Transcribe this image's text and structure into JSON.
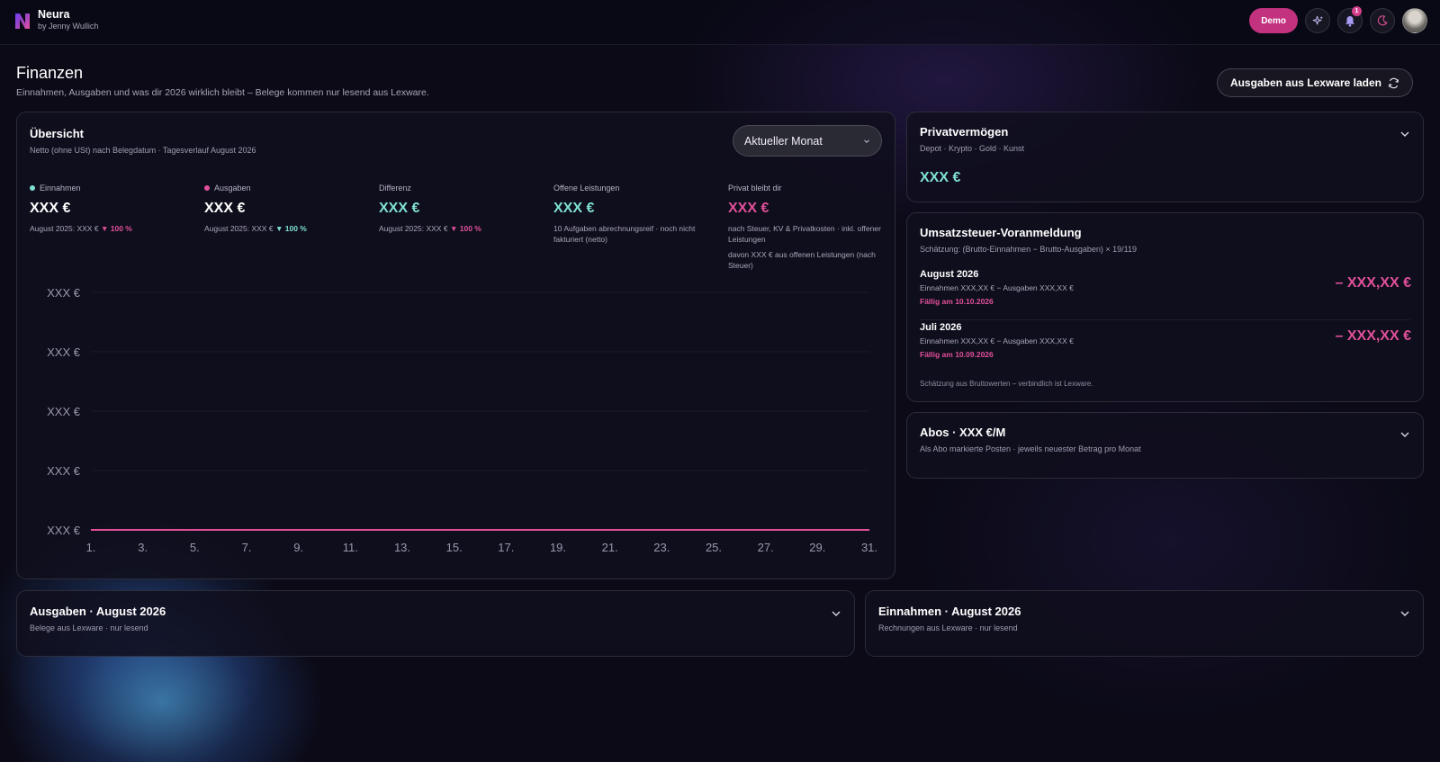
{
  "app": {
    "name": "Neura",
    "byline": "by Jenny Wullich"
  },
  "topbar": {
    "demo_label": "Demo",
    "notifications_count": "1"
  },
  "page": {
    "title": "Finanzen",
    "subtitle": "Einnahmen, Ausgaben und was dir 2026 wirklich bleibt – Belege kommen nur lesend aus Lexware.",
    "load_button": "Ausgaben aus Lexware laden"
  },
  "overview": {
    "title": "Übersicht",
    "subtitle": "Netto (ohne USt) nach Belegdatum · Tagesverlauf August 2026",
    "period_selected": "Aktueller Monat",
    "kpis": [
      {
        "label": "Einnahmen",
        "value": "XXX €",
        "note_prefix": "August 2025: XXX €",
        "arrow": "▼",
        "pct": "100 %"
      },
      {
        "label": "Ausgaben",
        "value": "XXX €",
        "note_prefix": "August 2025: XXX €",
        "arrow": "▼",
        "pct": "100 %"
      },
      {
        "label": "Differenz",
        "value": "XXX €",
        "note_prefix": "August 2025: XXX €",
        "arrow": "▼",
        "pct": "100 %"
      },
      {
        "label": "Offene Leistungen",
        "value": "XXX €",
        "note": "10 Aufgaben abrechnungsreif · noch nicht fakturiert (netto)"
      },
      {
        "label": "Privat bleibt dir",
        "value": "XXX €",
        "note": "nach Steuer, KV & Privatkosten · inkl. offener Leistungen",
        "note2": "davon XXX € aus offenen Leistungen (nach Steuer)"
      }
    ]
  },
  "colors": {
    "einnahmen": "#7fe0d4",
    "ausgaben": "#e0509a",
    "accent_pink": "#c2327f",
    "teal": "#7fe0d4"
  },
  "chart_data": {
    "type": "line",
    "title": "",
    "xlabel": "",
    "ylabel": "",
    "y_tick_labels": [
      "XXX €",
      "XXX €",
      "XXX €",
      "XXX €",
      "XXX €"
    ],
    "x_tick_labels": [
      "1.",
      "3.",
      "5.",
      "7.",
      "9.",
      "11.",
      "13.",
      "15.",
      "17.",
      "19.",
      "21.",
      "23.",
      "25.",
      "27.",
      "29.",
      "31."
    ],
    "x": [
      1,
      31
    ],
    "series": [
      {
        "values": [
          0,
          0
        ]
      }
    ],
    "ylim": [
      0,
      4
    ],
    "grid": true,
    "legend": "none"
  },
  "privatvermoegen": {
    "title": "Privatvermögen",
    "subtitle": "Depot · Krypto · Gold · Kunst",
    "value": "XXX €"
  },
  "ust": {
    "title": "Umsatzsteuer-Voranmeldung",
    "subtitle": "Schätzung: (Brutto-Einnahmen − Brutto-Ausgaben) × 19/119",
    "rows": [
      {
        "period": "August 2026",
        "line": "Einnahmen XXX,XX € − Ausgaben XXX,XX €",
        "due": "Fällig am 10.10.2026",
        "amount": "– XXX,XX €"
      },
      {
        "period": "Juli 2026",
        "line": "Einnahmen XXX,XX € − Ausgaben XXX,XX €",
        "due": "Fällig am 10.09.2026",
        "amount": "– XXX,XX €"
      }
    ],
    "footnote": "Schätzung aus Bruttowerten – verbindlich ist Lexware."
  },
  "abos": {
    "title": "Abos · XXX €/M",
    "subtitle": "Als Abo markierte Posten · jeweils neuester Betrag pro Monat"
  },
  "ausgaben": {
    "title": "Ausgaben · August 2026",
    "subtitle": "Belege aus Lexware · nur lesend"
  },
  "einnahmen": {
    "title": "Einnahmen · August 2026",
    "subtitle": "Rechnungen aus Lexware · nur lesend"
  }
}
